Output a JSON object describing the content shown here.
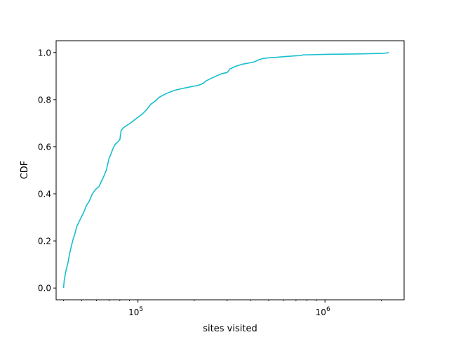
{
  "chart_data": {
    "type": "line",
    "xlabel": "sites visited",
    "ylabel": "CDF",
    "xscale": "log",
    "xlim": [
      36500,
      2650000
    ],
    "ylim": [
      -0.05,
      1.05
    ],
    "x_ticks": [
      {
        "value": 100000,
        "base": "10",
        "exp": "5"
      },
      {
        "value": 1000000,
        "base": "10",
        "exp": "6"
      }
    ],
    "y_ticks": [
      {
        "value": 0.0,
        "label": "0.0"
      },
      {
        "value": 0.2,
        "label": "0.2"
      },
      {
        "value": 0.4,
        "label": "0.4"
      },
      {
        "value": 0.6,
        "label": "0.6"
      },
      {
        "value": 0.8,
        "label": "0.8"
      },
      {
        "value": 1.0,
        "label": "1.0"
      }
    ],
    "grid": false,
    "color": "#17becf",
    "series": [
      {
        "x": [
          40000,
          40300,
          40700,
          41100,
          41700,
          42300,
          43200,
          44100,
          45100,
          46000,
          47000,
          48300,
          49700,
          51200,
          53000,
          55000,
          57000,
          59500,
          61800,
          63500,
          65300,
          67700,
          70000,
          71800,
          73300,
          75500,
          78000,
          80000,
          81000,
          81300,
          83500,
          87000,
          91000,
          94500,
          98000,
          102000,
          106000,
          112000,
          117000,
          122000,
          126000,
          130000,
          137000,
          146000,
          158000,
          168000,
          180000,
          193000,
          208000,
          218000,
          224000,
          232000,
          246000,
          262000,
          280000,
          300000,
          310000,
          330000,
          360000,
          390000,
          418000,
          432000,
          445000,
          470000,
          510000,
          560000,
          620000,
          700000,
          750000,
          760000,
          800000,
          1000000,
          1500000,
          2000000,
          2150000,
          2200000
        ],
        "y": [
          0.0,
          0.03,
          0.05,
          0.07,
          0.09,
          0.11,
          0.15,
          0.18,
          0.21,
          0.23,
          0.26,
          0.28,
          0.3,
          0.32,
          0.35,
          0.37,
          0.4,
          0.42,
          0.43,
          0.45,
          0.47,
          0.5,
          0.55,
          0.57,
          0.59,
          0.61,
          0.62,
          0.63,
          0.66,
          0.67,
          0.68,
          0.69,
          0.7,
          0.71,
          0.72,
          0.73,
          0.74,
          0.76,
          0.78,
          0.79,
          0.8,
          0.81,
          0.82,
          0.83,
          0.84,
          0.845,
          0.85,
          0.855,
          0.86,
          0.865,
          0.87,
          0.88,
          0.89,
          0.9,
          0.91,
          0.915,
          0.93,
          0.94,
          0.95,
          0.955,
          0.96,
          0.965,
          0.97,
          0.975,
          0.978,
          0.98,
          0.983,
          0.986,
          0.987,
          0.99,
          0.99,
          0.992,
          0.994,
          0.996,
          0.998,
          1.0
        ]
      }
    ]
  }
}
